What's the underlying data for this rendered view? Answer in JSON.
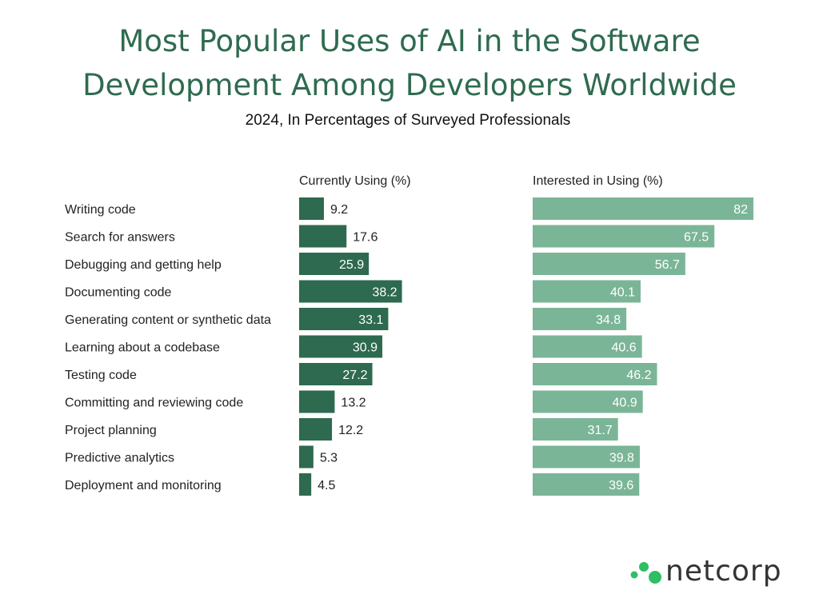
{
  "title_lines": [
    "Most Popular Uses of AI in the Software",
    "Development Among Developers Worldwide"
  ],
  "subtitle": "2024, In Percentages of Surveyed Professionals",
  "brand": "netcorp",
  "colors": {
    "title": "#2f6b4f",
    "current_bar": "#2d6a4f",
    "interested_bar": "#7bb597",
    "logo_dot": "#2fbf63"
  },
  "chart_data": {
    "type": "bar",
    "orientation": "horizontal",
    "title": "Most Popular Uses of AI in the Software Development Among Developers Worldwide",
    "subtitle": "2024, In Percentages of Surveyed Professionals",
    "categories": [
      "Writing code",
      "Search for answers",
      "Debugging and getting help",
      "Documenting code",
      "Generating content or synthetic data",
      "Learning about a codebase",
      "Testing code",
      "Committing and reviewing code",
      "Project planning",
      "Predictive analytics",
      "Deployment and monitoring"
    ],
    "series": [
      {
        "name": "Currently Using (%)",
        "values": [
          9.2,
          17.6,
          25.9,
          38.2,
          33.1,
          30.9,
          27.2,
          13.2,
          12.2,
          5.3,
          4.5
        ]
      },
      {
        "name": "Interested in Using (%)",
        "values": [
          82,
          67.5,
          56.7,
          40.1,
          34.8,
          40.6,
          46.2,
          40.9,
          31.7,
          39.8,
          39.6
        ]
      }
    ],
    "xlim": [
      0,
      82
    ],
    "grid": false,
    "legend": "none"
  }
}
